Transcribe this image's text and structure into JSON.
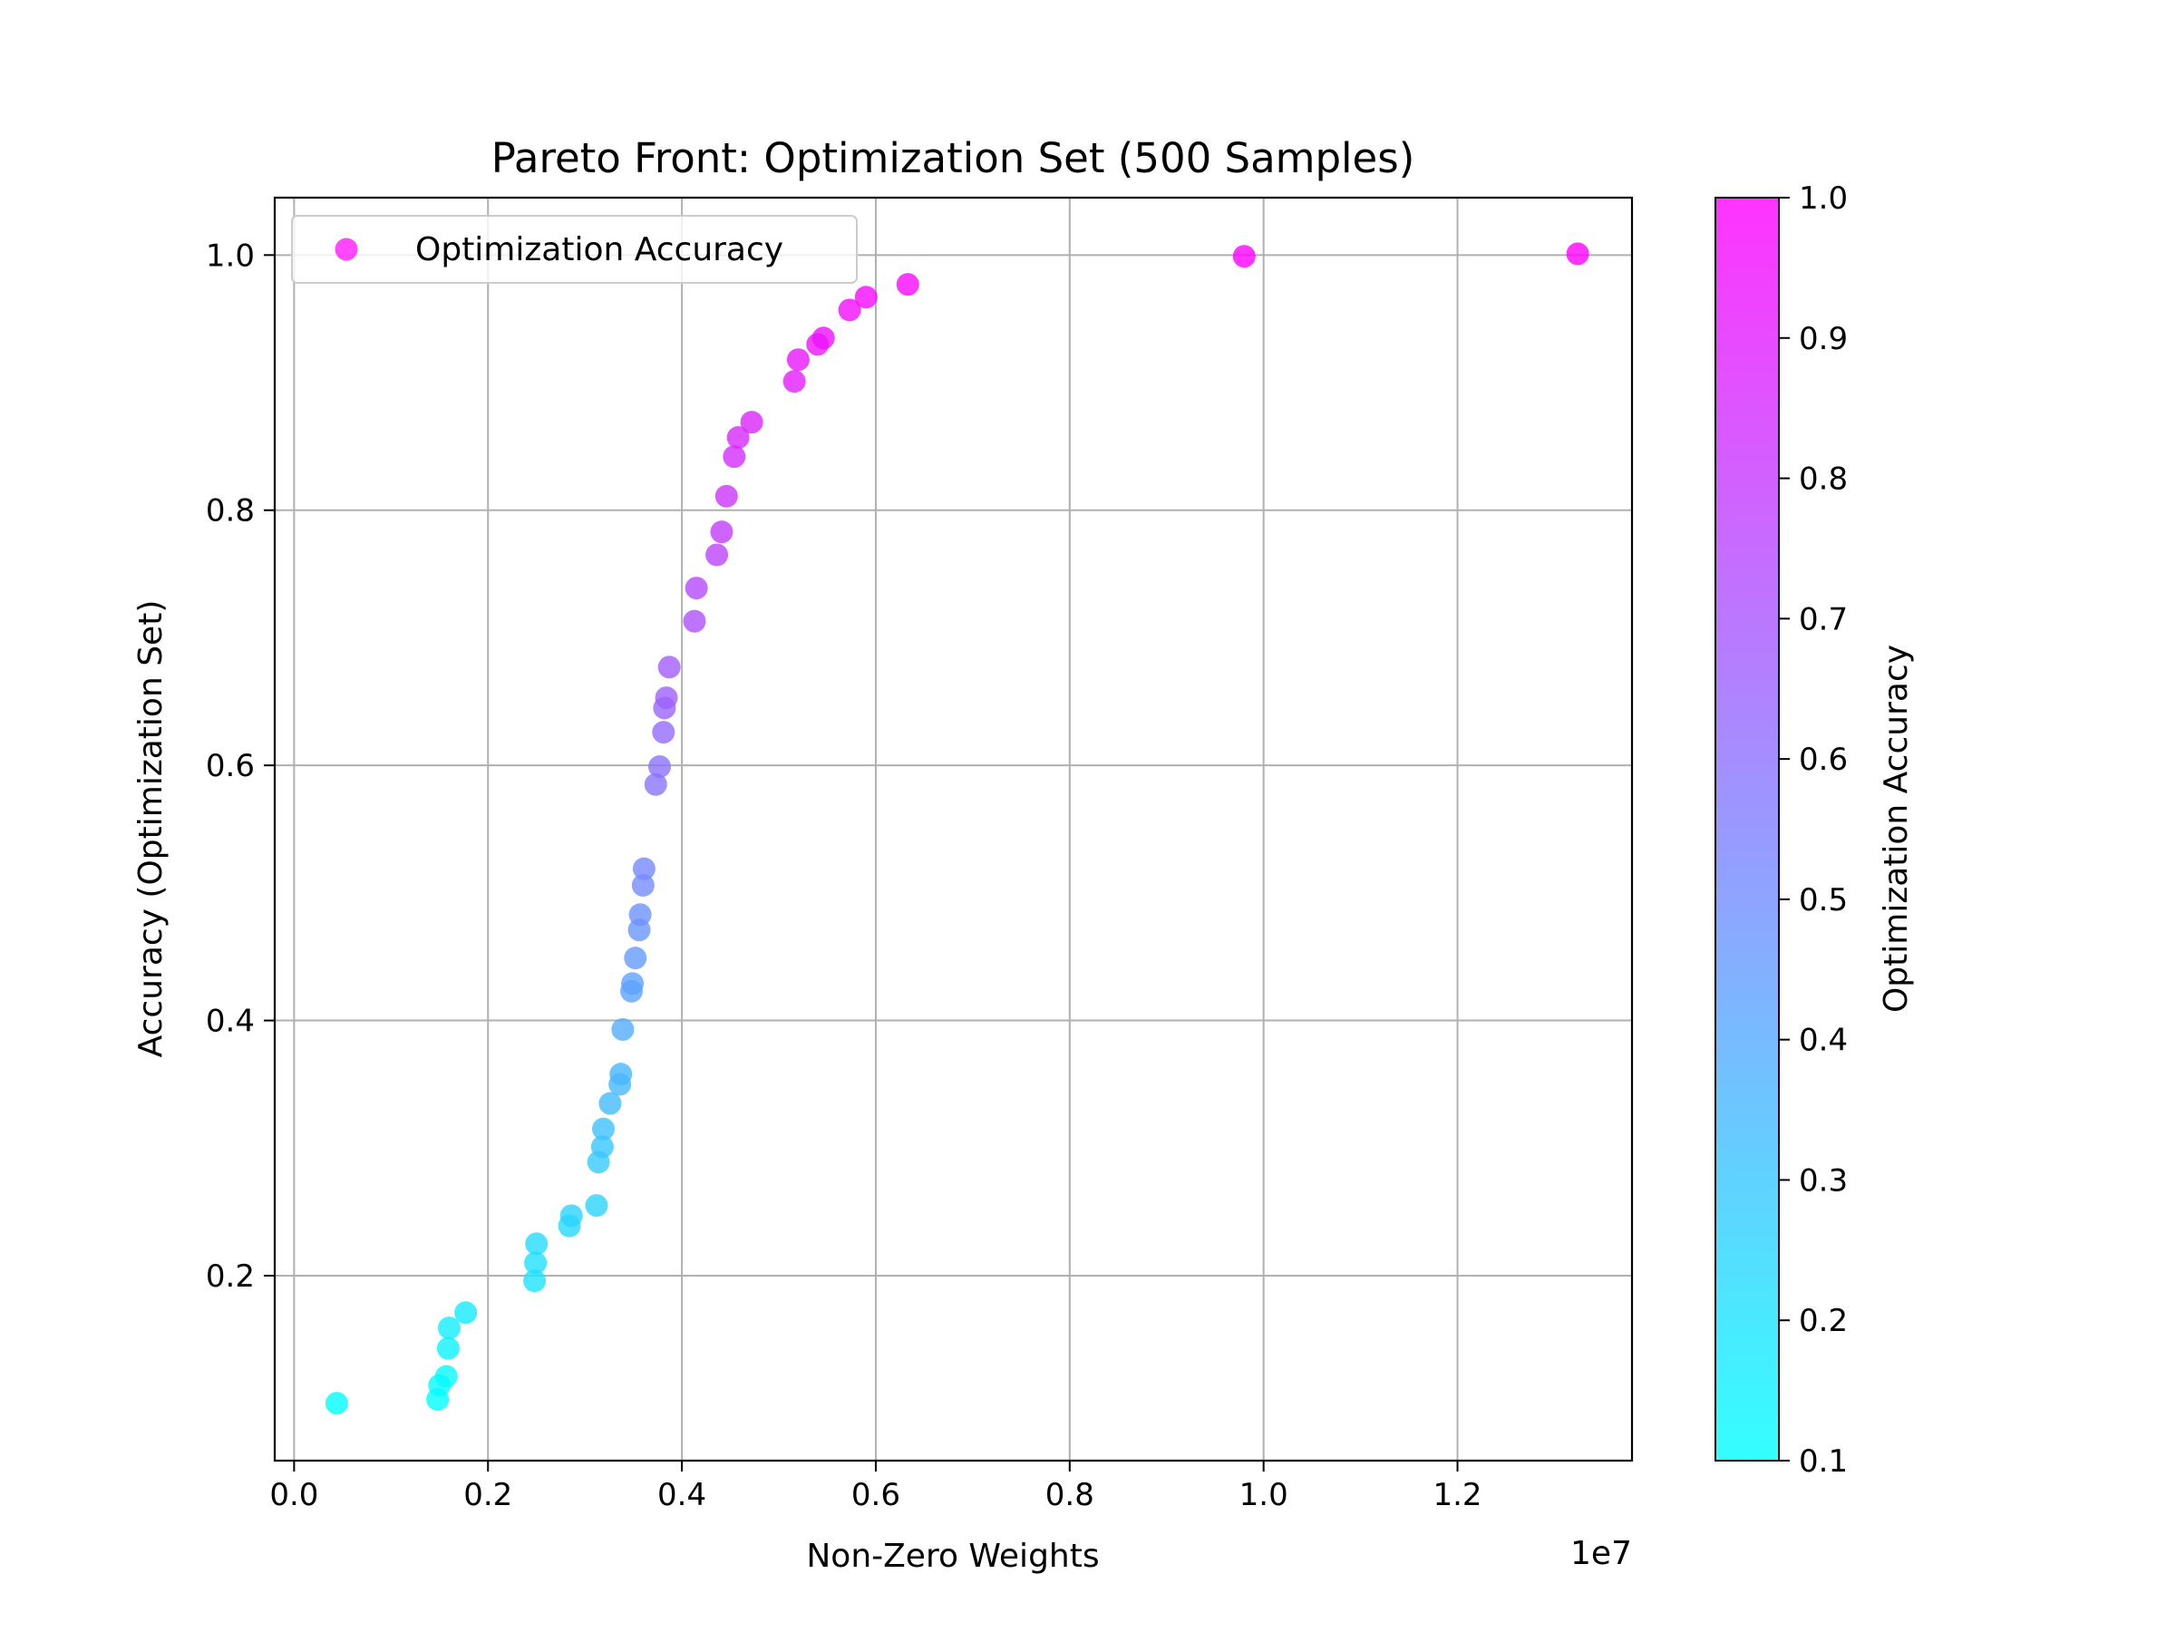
{
  "chart_data": {
    "type": "scatter",
    "title": "Pareto Front: Optimization Set (500 Samples)",
    "xlabel": "Non-Zero Weights",
    "ylabel": "Accuracy (Optimization Set)",
    "x_offset_text": "1e7",
    "xlim": [
      -0.02,
      1.38
    ],
    "ylim": [
      0.055,
      1.045
    ],
    "xticks": [
      0.0,
      0.2,
      0.4,
      0.6,
      0.8,
      1.0,
      1.2
    ],
    "xtick_labels": [
      "0.0",
      "0.2",
      "0.4",
      "0.6",
      "0.8",
      "1.0",
      "1.2"
    ],
    "yticks": [
      0.2,
      0.4,
      0.6,
      0.8,
      1.0
    ],
    "ytick_labels": [
      "0.2",
      "0.4",
      "0.6",
      "0.8",
      "1.0"
    ],
    "grid": true,
    "legend": {
      "placement": "top-left",
      "entries": [
        "Optimization Accuracy"
      ]
    },
    "colorbar": {
      "label": "Optimization Accuracy",
      "range": [
        0.1,
        1.0
      ],
      "ticks": [
        0.1,
        0.2,
        0.3,
        0.4,
        0.5,
        0.6,
        0.7,
        0.8,
        0.9,
        1.0
      ],
      "tick_labels": [
        "0.1",
        "0.2",
        "0.3",
        "0.4",
        "0.5",
        "0.6",
        "0.7",
        "0.8",
        "0.9",
        "1.0"
      ],
      "colormap": "cool",
      "color_low": "#33ffff",
      "color_high": "#ff33ff"
    },
    "series": [
      {
        "name": "Optimization Accuracy",
        "x": [
          0.044,
          0.148,
          0.15,
          0.157,
          0.159,
          0.16,
          0.177,
          0.248,
          0.249,
          0.25,
          0.284,
          0.286,
          0.312,
          0.314,
          0.318,
          0.319,
          0.326,
          0.336,
          0.337,
          0.339,
          0.348,
          0.349,
          0.352,
          0.356,
          0.357,
          0.36,
          0.361,
          0.373,
          0.377,
          0.381,
          0.382,
          0.384,
          0.387,
          0.413,
          0.415,
          0.436,
          0.441,
          0.446,
          0.454,
          0.458,
          0.472,
          0.516,
          0.52,
          0.54,
          0.546,
          0.573,
          0.59,
          0.633,
          0.98,
          1.324
        ],
        "y": [
          0.1,
          0.103,
          0.114,
          0.121,
          0.143,
          0.159,
          0.171,
          0.196,
          0.21,
          0.225,
          0.239,
          0.247,
          0.255,
          0.289,
          0.301,
          0.315,
          0.335,
          0.35,
          0.358,
          0.393,
          0.423,
          0.429,
          0.449,
          0.471,
          0.483,
          0.506,
          0.519,
          0.585,
          0.599,
          0.626,
          0.645,
          0.653,
          0.677,
          0.713,
          0.739,
          0.765,
          0.783,
          0.811,
          0.842,
          0.857,
          0.869,
          0.901,
          0.918,
          0.93,
          0.935,
          0.957,
          0.967,
          0.977,
          0.999,
          1.001
        ]
      }
    ]
  }
}
